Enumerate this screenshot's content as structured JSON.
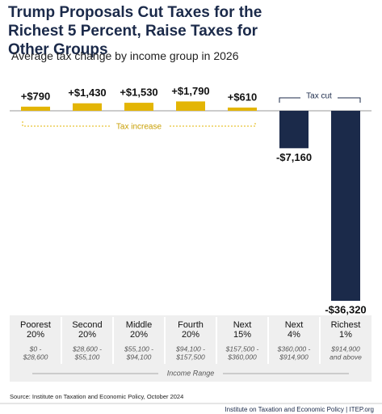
{
  "chart_data": {
    "type": "bar",
    "title": "Trump Proposals Cut Taxes for the Richest 5 Percent, Raise Taxes for Other Groups",
    "subtitle": "Average tax change by income group in 2026",
    "categories": [
      [
        "Poorest",
        "20%"
      ],
      [
        "Second",
        "20%"
      ],
      [
        "Middle",
        "20%"
      ],
      [
        "Fourth",
        "20%"
      ],
      [
        "Next",
        "15%"
      ],
      [
        "Next",
        "4%"
      ],
      [
        "Richest",
        "1%"
      ]
    ],
    "income_ranges": [
      [
        "$0 -",
        "$28,600"
      ],
      [
        "$28,600 -",
        "$55,100"
      ],
      [
        "$55,100 -",
        "$94,100"
      ],
      [
        "$94,100 -",
        "$157,500"
      ],
      [
        "$157,500 -",
        "$360,000"
      ],
      [
        "$360,000 -",
        "$914,900"
      ],
      [
        "$914,900",
        "and above"
      ]
    ],
    "values": [
      790,
      1430,
      1530,
      1790,
      610,
      -7160,
      -36320
    ],
    "value_labels": [
      "+$790",
      "+$1,430",
      "+$1,530",
      "+$1,790",
      "+$610",
      "-$7,160",
      "-$36,320"
    ],
    "positive_color": "#e3b505",
    "negative_color": "#1b2a4a",
    "annotations": {
      "tax_increase": "Tax increase",
      "tax_cut": "Tax cut",
      "income_range": "Income Range"
    },
    "source": "Source: Institute on Taxation and Economic Policy, October 2024",
    "footer": "Institute on Taxation and Economic Policy | ITEP.org"
  }
}
